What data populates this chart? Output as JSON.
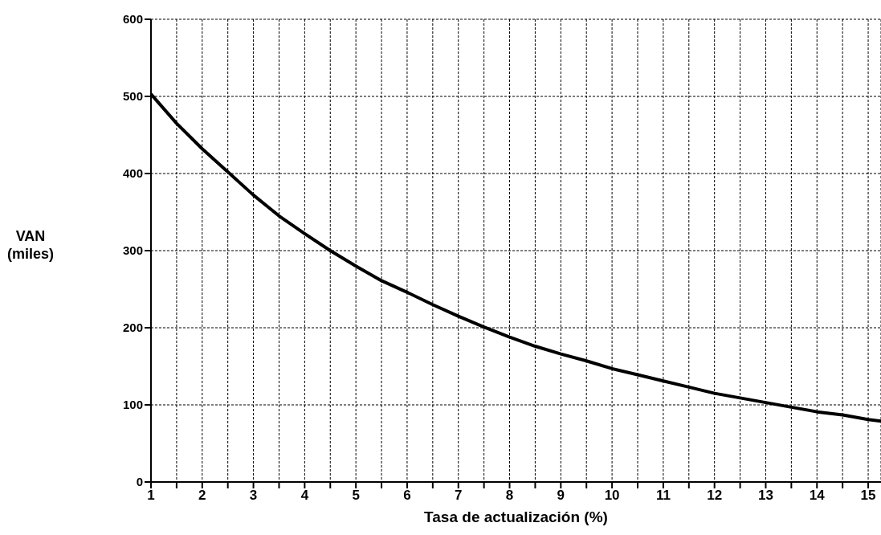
{
  "chart_data": {
    "type": "line",
    "xlabel": "Tasa de actualización (%)",
    "ylabel": "VAN (miles)",
    "x": [
      1,
      1.5,
      2,
      2.5,
      3,
      3.5,
      4,
      4.5,
      5,
      5.5,
      6,
      6.5,
      7,
      7.5,
      8,
      8.5,
      9,
      9.5,
      10,
      10.5,
      11,
      11.5,
      12,
      12.5,
      13,
      13.5,
      14,
      14.5,
      15,
      15.25
    ],
    "series": [
      {
        "color": "#000000",
        "values": [
          503,
          465,
          432,
          402,
          372,
          345,
          322,
          300,
          280,
          261,
          246,
          230,
          215,
          201,
          188,
          176,
          166,
          157,
          147,
          139,
          131,
          123,
          115,
          109,
          103,
          97,
          91,
          87,
          81,
          79
        ]
      }
    ],
    "xlim": [
      1,
      15.25
    ],
    "xticks": [
      1,
      {
        "value": 1.5,
        "label": null
      },
      2,
      {
        "value": 2.5,
        "label": null
      },
      3,
      {
        "value": 3.5,
        "label": null
      },
      4,
      {
        "value": 4.5,
        "label": null
      },
      5,
      {
        "value": 5.5,
        "label": null
      },
      6,
      {
        "value": 6.5,
        "label": null
      },
      7,
      {
        "value": 7.5,
        "label": null
      },
      8,
      {
        "value": 8.5,
        "label": null
      },
      9,
      {
        "value": 9.5,
        "label": null
      },
      10,
      {
        "value": 10.5,
        "label": null
      },
      11,
      {
        "value": 11.5,
        "label": null
      },
      12,
      {
        "value": 12.5,
        "label": null
      },
      13,
      {
        "value": 13.5,
        "label": null
      },
      14,
      {
        "value": 14.5,
        "label": null
      },
      15
    ],
    "ylim": [
      0,
      600
    ],
    "yticks": [
      0,
      100,
      200,
      300,
      400,
      500,
      600
    ],
    "grid": true,
    "marker": "none",
    "line_style": "solid"
  }
}
